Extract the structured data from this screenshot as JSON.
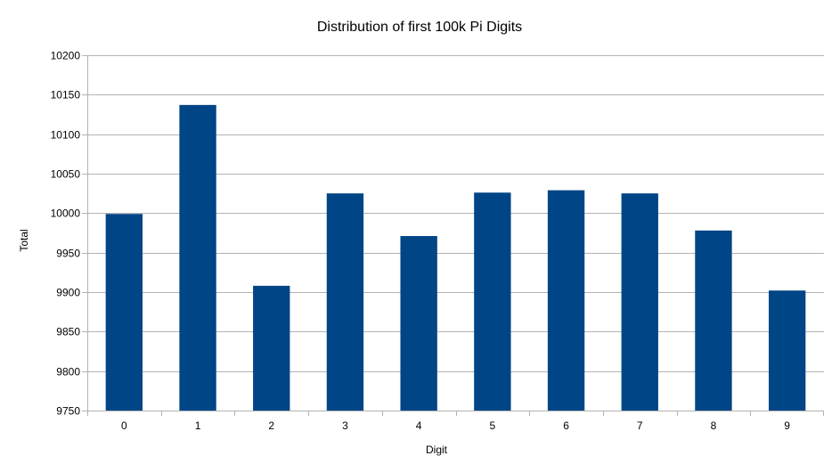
{
  "chart_data": {
    "type": "bar",
    "title": "Distribution of first 100k Pi Digits",
    "xlabel": "Digit",
    "ylabel": "Total",
    "categories": [
      "0",
      "1",
      "2",
      "3",
      "4",
      "5",
      "6",
      "7",
      "8",
      "9"
    ],
    "values": [
      9999,
      10137,
      9908,
      10025,
      9971,
      10026,
      10029,
      10025,
      9978,
      9902
    ],
    "ylim": [
      9750,
      10200
    ],
    "yticks": [
      "9750",
      "9800",
      "9850",
      "9900",
      "9950",
      "10000",
      "10050",
      "10100",
      "10150",
      "10200"
    ],
    "grid": true,
    "legend": "none",
    "bar_color": "#004586",
    "grid_color": "#b3b3b3",
    "axis_color": "#b3b3b3"
  }
}
